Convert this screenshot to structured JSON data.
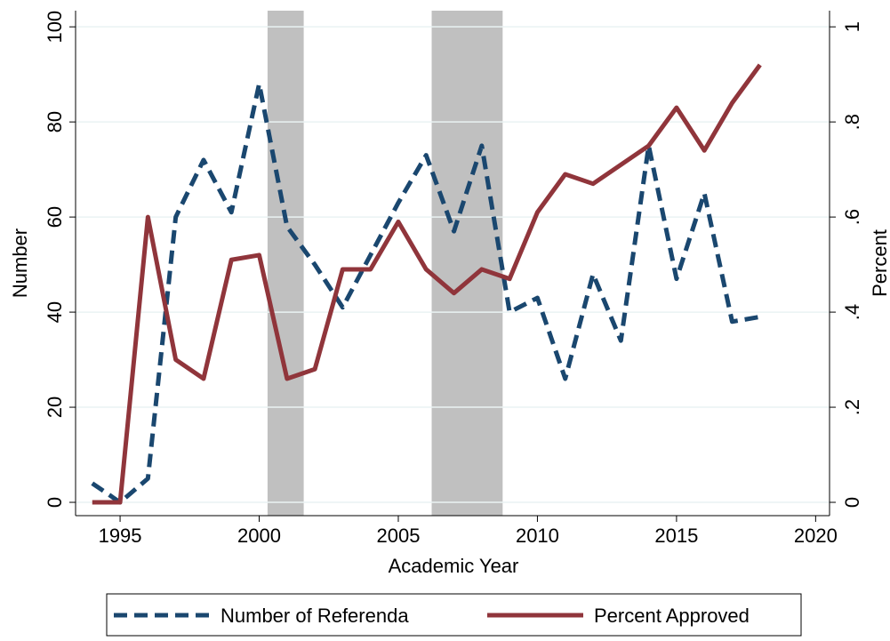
{
  "chart_data": {
    "type": "line",
    "x": [
      1994,
      1995,
      1996,
      1997,
      1998,
      1999,
      2000,
      2001,
      2002,
      2003,
      2004,
      2005,
      2006,
      2007,
      2008,
      2009,
      2010,
      2011,
      2012,
      2013,
      2014,
      2015,
      2016,
      2017,
      2018
    ],
    "series": [
      {
        "name": "Number of Referenda",
        "color": "#1a476f",
        "dash": true,
        "values": [
          4,
          0,
          5,
          60,
          72,
          61,
          88,
          58,
          50,
          41,
          52,
          63,
          73,
          57,
          75,
          40,
          43,
          26,
          48,
          34,
          75,
          47,
          65,
          38,
          39
        ]
      },
      {
        "name": "Percent Approved",
        "color": "#90353b",
        "axis": "y2",
        "values": [
          0,
          0,
          0.6,
          0.3,
          0.26,
          0.51,
          0.52,
          0.26,
          0.28,
          0.49,
          0.49,
          0.59,
          0.49,
          0.44,
          0.49,
          0.47,
          0.61,
          0.69,
          0.67,
          0.71,
          0.75,
          0.83,
          0.74,
          0.84,
          0.92
        ]
      }
    ],
    "shaded_regions": [
      [
        2000.3,
        2001.6
      ],
      [
        2006.2,
        2008.75
      ]
    ],
    "shade_color": "#c0c0c0",
    "xlabel": "Academic Year",
    "ylabel": "Number",
    "y2label": "Percent",
    "xlim": [
      1993.4,
      2020.5
    ],
    "xticks": [
      1995,
      2000,
      2005,
      2010,
      2015,
      2020
    ],
    "ylim": [
      -2.8,
      103.4
    ],
    "yticks": [
      0,
      20,
      40,
      60,
      80,
      100
    ],
    "y2lim": [
      -0.028,
      1.034
    ],
    "y2ticks": [
      0,
      {
        "value": 0.2,
        "label": ".2"
      },
      {
        "value": 0.4,
        "label": ".4"
      },
      {
        "value": 0.6,
        "label": ".6"
      },
      {
        "value": 0.8,
        "label": ".8"
      },
      1
    ],
    "grid": true,
    "legend": "bottom"
  }
}
